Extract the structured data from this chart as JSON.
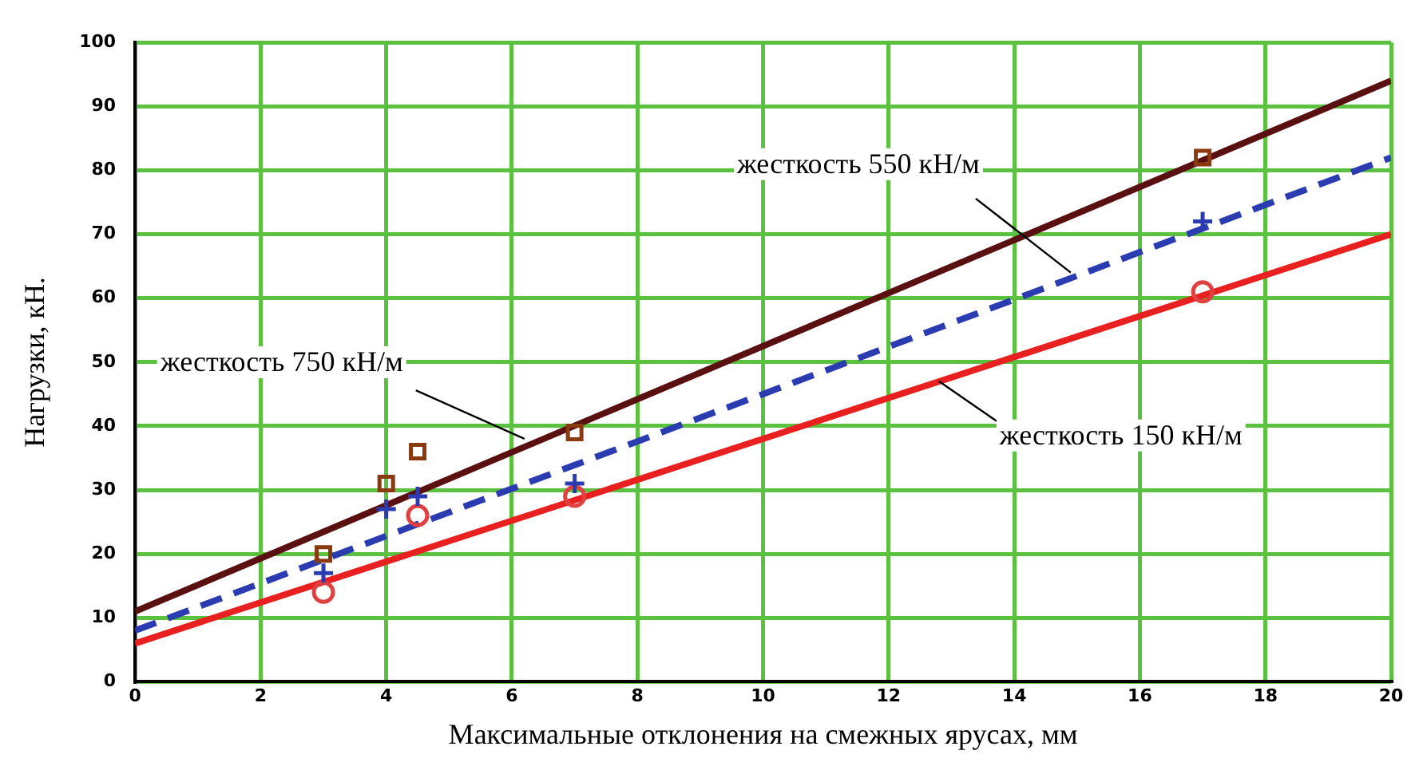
{
  "chart_data": {
    "type": "line",
    "xlabel": "Максимальные отклонения на смежных ярусах, мм",
    "ylabel": "Нагрузки, кН.",
    "xlim": [
      0,
      20
    ],
    "xticks": [
      0,
      2,
      4,
      6,
      8,
      10,
      12,
      14,
      16,
      18,
      20
    ],
    "ylim": [
      0,
      100
    ],
    "yticks": [
      0,
      10,
      20,
      30,
      40,
      50,
      60,
      70,
      80,
      90,
      100
    ],
    "grid": true,
    "legend": false,
    "series": [
      {
        "color": "#5a1010",
        "x": [
          0,
          20
        ],
        "values": [
          11,
          94
        ],
        "marker": "none",
        "line_style": "solid"
      },
      {
        "color": "#2a3cb0",
        "x": [
          0,
          20
        ],
        "values": [
          8,
          82
        ],
        "marker": "none",
        "line_style": "dashed"
      },
      {
        "color": "#e82020",
        "x": [
          0,
          20
        ],
        "values": [
          6,
          70
        ],
        "marker": "none",
        "line_style": "solid"
      },
      {
        "type": "scatter",
        "color": "#8a3a10",
        "x": [
          3,
          4,
          4.5,
          7,
          17
        ],
        "values": [
          20,
          31,
          36,
          39,
          82
        ],
        "marker": "square"
      },
      {
        "type": "scatter",
        "color": "#2a3cb0",
        "x": [
          3,
          4,
          4.5,
          7,
          17
        ],
        "values": [
          17,
          27,
          29,
          31,
          72
        ],
        "marker": "cross"
      },
      {
        "type": "scatter",
        "color": "#e04040",
        "x": [
          3,
          4.5,
          7,
          17
        ],
        "values": [
          14,
          26,
          29,
          61
        ],
        "marker": "circle"
      }
    ],
    "annotations": [
      {
        "text": "жесткость 550 кН/м",
        "x": 14.9,
        "y": 64
      },
      {
        "text": "жесткость 750 кН/м",
        "x": 6.2,
        "y": 38
      },
      {
        "text": "жесткость 150 кН/м",
        "x": 12.8,
        "y": 47
      }
    ]
  }
}
